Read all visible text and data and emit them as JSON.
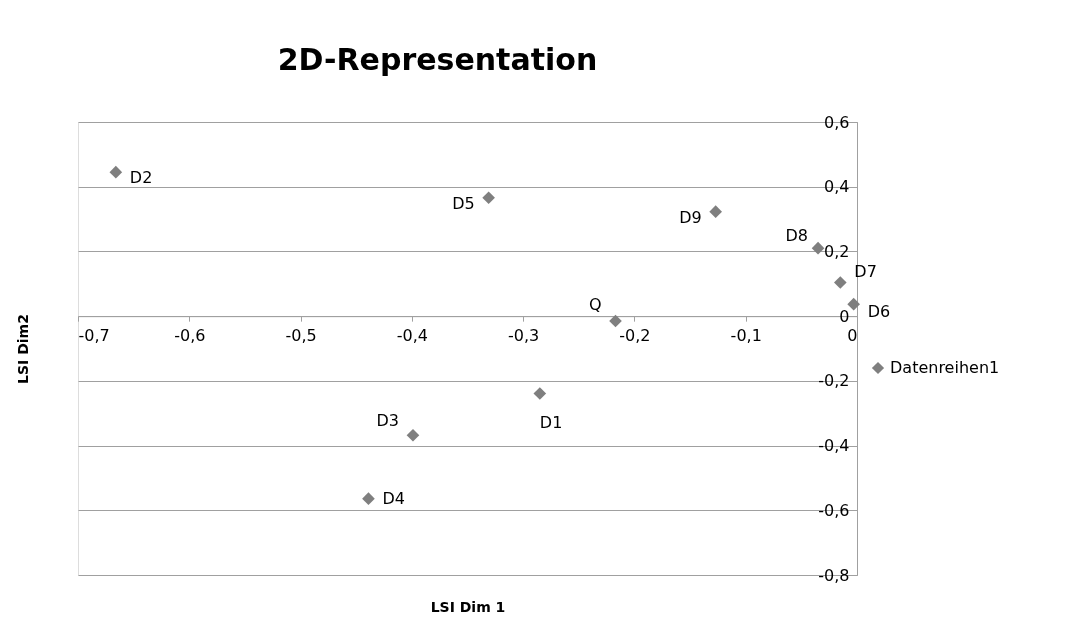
{
  "chart_data": {
    "type": "scatter",
    "title": "2D-Representation",
    "xlabel": "LSI Dim 1",
    "ylabel": "LSI Dim2",
    "x": [
      -0.666,
      -0.331,
      -0.127,
      -0.035,
      -0.015,
      -0.003,
      -0.217,
      -0.285,
      -0.399,
      -0.439
    ],
    "series": [
      {
        "name": "Datenreihen1",
        "color": "#7f7f7f",
        "values": [
          0.445,
          0.366,
          0.323,
          0.21,
          0.104,
          0.037,
          -0.015,
          -0.239,
          -0.368,
          -0.564
        ]
      }
    ],
    "annotations": [
      {
        "text": "D2",
        "x": -0.666,
        "y": 0.445
      },
      {
        "text": "D5",
        "x": -0.331,
        "y": 0.366
      },
      {
        "text": "D9",
        "x": -0.127,
        "y": 0.323
      },
      {
        "text": "D8",
        "x": -0.035,
        "y": 0.21
      },
      {
        "text": "D7",
        "x": -0.015,
        "y": 0.104
      },
      {
        "text": "D6",
        "x": -0.003,
        "y": 0.037
      },
      {
        "text": "Q",
        "x": -0.217,
        "y": -0.015
      },
      {
        "text": "D1",
        "x": -0.285,
        "y": -0.239
      },
      {
        "text": "D3",
        "x": -0.399,
        "y": -0.368
      },
      {
        "text": "D4",
        "x": -0.439,
        "y": -0.564
      }
    ],
    "xlim": [
      -0.7,
      0
    ],
    "ylim": [
      -0.8,
      0.6
    ],
    "xticks": [
      {
        "value": -0.7,
        "label": "-0,7"
      },
      {
        "value": -0.6,
        "label": "-0,6"
      },
      {
        "value": -0.5,
        "label": "-0,5"
      },
      {
        "value": -0.4,
        "label": "-0,4"
      },
      {
        "value": -0.3,
        "label": "-0,3"
      },
      {
        "value": -0.2,
        "label": "-0,2"
      },
      {
        "value": -0.1,
        "label": "-0,1"
      },
      0
    ],
    "yticks": [
      {
        "value": -0.8,
        "label": "-0,8"
      },
      {
        "value": -0.6,
        "label": "-0,6"
      },
      {
        "value": -0.4,
        "label": "-0,4"
      },
      {
        "value": -0.2,
        "label": "-0,2"
      },
      0,
      {
        "value": 0.2,
        "label": "0,2"
      },
      {
        "value": 0.4,
        "label": "0,4"
      },
      {
        "value": 0.6,
        "label": "0,6"
      }
    ],
    "grid": "y",
    "legend": "right",
    "marker": "diamond"
  }
}
